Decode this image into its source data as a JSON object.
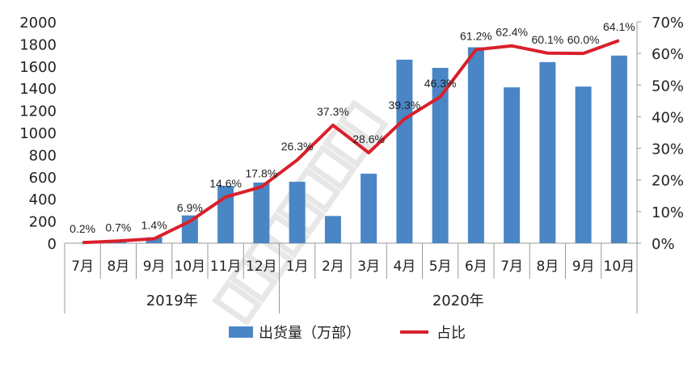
{
  "chart_data": {
    "type": "bar+line",
    "categories": [
      "7月",
      "8月",
      "9月",
      "10月",
      "11月",
      "12月",
      "1月",
      "2月",
      "3月",
      "4月",
      "5月",
      "6月",
      "7月",
      "8月",
      "9月",
      "10月"
    ],
    "groups": [
      {
        "label": "2019年",
        "count": 6
      },
      {
        "label": "2020年",
        "count": 10
      }
    ],
    "series": [
      {
        "name": "出货量（万部）",
        "type": "bar",
        "axis": "left",
        "color": "#4a86c5",
        "values": [
          3,
          10,
          53,
          251,
          518,
          548,
          555,
          246,
          628,
          1658,
          1584,
          1770,
          1408,
          1636,
          1415,
          1695
        ]
      },
      {
        "name": "占比",
        "type": "line",
        "axis": "right",
        "color": "#d9202b",
        "values": [
          0.2,
          0.7,
          1.4,
          6.9,
          14.6,
          17.8,
          26.3,
          37.3,
          28.6,
          39.3,
          46.3,
          61.2,
          62.4,
          60.1,
          60.0,
          64.1
        ],
        "labels": [
          "0.2%",
          "0.7%",
          "1.4%",
          "6.9%",
          "14.6%",
          "17.8%",
          "26.3%",
          "37.3%",
          "28.6%",
          "39.3%",
          "46.3%",
          "61.2%",
          "62.4%",
          "60.1%",
          "60.0%",
          "64.1%"
        ]
      }
    ],
    "left_axis": {
      "range": [
        0,
        2000
      ],
      "ticks": [
        "0",
        "200",
        "400",
        "600",
        "800",
        "1000",
        "1200",
        "1400",
        "1600",
        "1800",
        "2000"
      ]
    },
    "right_axis": {
      "range": [
        0,
        70
      ],
      "ticks": [
        "0%",
        "10%",
        "20%",
        "30%",
        "40%",
        "50%",
        "60%",
        "70%"
      ]
    },
    "grid": false,
    "legend": "bottom",
    "watermark": "CAICT中国信通院"
  }
}
